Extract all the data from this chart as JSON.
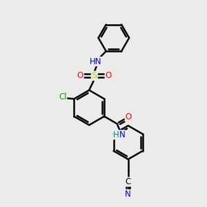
{
  "bg_color": "#ebebeb",
  "bond_color": "#000000",
  "bond_width": 1.8,
  "dbo": 0.055,
  "atom_colors": {
    "N": "#0000cc",
    "O": "#ff0000",
    "S": "#cccc00",
    "Cl": "#00aa00",
    "C": "#000000",
    "H": "#008888"
  },
  "font_size": 8.5,
  "fig_size": [
    3.0,
    3.0
  ],
  "dpi": 100
}
